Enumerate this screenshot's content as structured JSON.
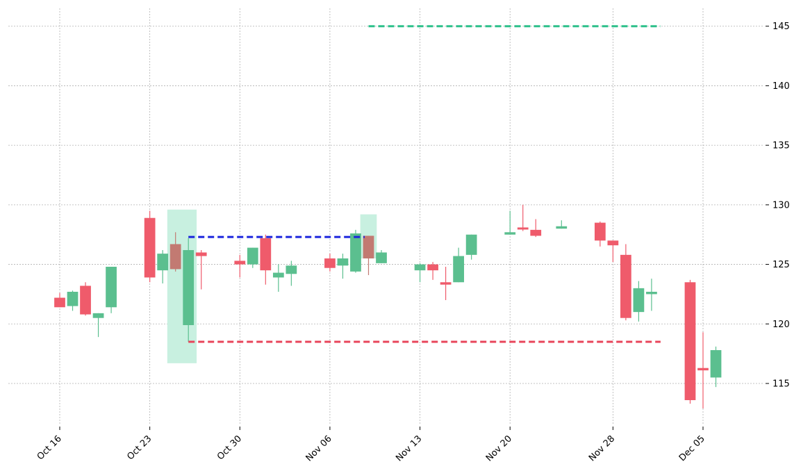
{
  "chart_data": {
    "type": "candlestick",
    "title": "",
    "xlabel": "",
    "ylabel": "",
    "ylim": [
      111.5,
      146.5
    ],
    "y_ticks": [
      115,
      120,
      125,
      130,
      135,
      140,
      145
    ],
    "y_axis_side": "right",
    "grid": true,
    "x_ticks": [
      {
        "date": "2023-10-16",
        "label": "Oct 16"
      },
      {
        "date": "2023-10-23",
        "label": "Oct 23"
      },
      {
        "date": "2023-10-30",
        "label": "Oct 30"
      },
      {
        "date": "2023-11-06",
        "label": "Nov 06"
      },
      {
        "date": "2023-11-13",
        "label": "Nov 13"
      },
      {
        "date": "2023-11-20",
        "label": "Nov 20"
      },
      {
        "date": "2023-11-28",
        "label": "Nov 28"
      },
      {
        "date": "2023-12-05",
        "label": "Dec 05"
      }
    ],
    "colors": {
      "up": "#5bbf8f",
      "down": "#ef5b6b",
      "highlight_fill": "#c8f0e0",
      "highlight_candle": "#c27a72",
      "blue_line": "#1a24dd",
      "green_line": "#2dc08a",
      "red_line": "#e8445a"
    },
    "candles": [
      {
        "date": "2023-10-16",
        "open": 122.2,
        "high": 122.6,
        "low": 121.4,
        "close": 121.4
      },
      {
        "date": "2023-10-17",
        "open": 121.5,
        "high": 122.8,
        "low": 121.1,
        "close": 122.7
      },
      {
        "date": "2023-10-18",
        "open": 123.2,
        "high": 123.5,
        "low": 120.7,
        "close": 120.8
      },
      {
        "date": "2023-10-19",
        "open": 120.5,
        "high": 120.9,
        "low": 118.9,
        "close": 120.9
      },
      {
        "date": "2023-10-20",
        "open": 121.4,
        "high": 124.8,
        "low": 120.9,
        "close": 124.8
      },
      {
        "date": "2023-10-23",
        "open": 128.9,
        "high": 129.5,
        "low": 123.5,
        "close": 123.9
      },
      {
        "date": "2023-10-24",
        "open": 124.5,
        "high": 126.2,
        "low": 123.4,
        "close": 125.9
      },
      {
        "date": "2023-10-25",
        "open": 126.7,
        "high": 127.7,
        "low": 124.4,
        "close": 124.6,
        "highlight": true
      },
      {
        "date": "2023-10-26",
        "open": 119.9,
        "high": 127.2,
        "low": 118.5,
        "close": 126.2
      },
      {
        "date": "2023-10-27",
        "open": 126.0,
        "high": 126.2,
        "low": 122.9,
        "close": 125.7
      },
      {
        "date": "2023-10-30",
        "open": 125.3,
        "high": 125.8,
        "low": 123.9,
        "close": 125.0
      },
      {
        "date": "2023-10-31",
        "open": 125.0,
        "high": 126.4,
        "low": 124.7,
        "close": 126.4
      },
      {
        "date": "2023-11-01",
        "open": 127.2,
        "high": 127.5,
        "low": 123.3,
        "close": 124.5
      },
      {
        "date": "2023-11-02",
        "open": 123.9,
        "high": 125.0,
        "low": 122.7,
        "close": 124.3
      },
      {
        "date": "2023-11-03",
        "open": 124.2,
        "high": 125.3,
        "low": 123.2,
        "close": 124.9
      },
      {
        "date": "2023-11-06",
        "open": 125.5,
        "high": 125.9,
        "low": 124.4,
        "close": 124.7
      },
      {
        "date": "2023-11-07",
        "open": 124.9,
        "high": 125.9,
        "low": 123.8,
        "close": 125.5
      },
      {
        "date": "2023-11-08",
        "open": 124.4,
        "high": 127.9,
        "low": 124.3,
        "close": 127.6
      },
      {
        "date": "2023-11-09",
        "open": 127.4,
        "high": 127.4,
        "low": 124.1,
        "close": 125.5,
        "highlight": true
      },
      {
        "date": "2023-11-10",
        "open": 125.1,
        "high": 126.2,
        "low": 125.1,
        "close": 126.0
      },
      {
        "date": "2023-11-13",
        "open": 124.5,
        "high": 125.1,
        "low": 123.5,
        "close": 125.0
      },
      {
        "date": "2023-11-14",
        "open": 125.0,
        "high": 125.2,
        "low": 123.7,
        "close": 124.5
      },
      {
        "date": "2023-11-15",
        "open": 123.5,
        "high": 124.8,
        "low": 122.0,
        "close": 123.3
      },
      {
        "date": "2023-11-16",
        "open": 123.5,
        "high": 126.4,
        "low": 123.5,
        "close": 125.7
      },
      {
        "date": "2023-11-17",
        "open": 125.8,
        "high": 127.5,
        "low": 125.4,
        "close": 127.5
      },
      {
        "date": "2023-11-20",
        "open": 127.5,
        "high": 129.5,
        "low": 127.5,
        "close": 127.7
      },
      {
        "date": "2023-11-21",
        "open": 128.1,
        "high": 130.0,
        "low": 127.8,
        "close": 128.0
      },
      {
        "date": "2023-11-22",
        "open": 127.9,
        "high": 128.8,
        "low": 127.3,
        "close": 127.4
      },
      {
        "date": "2023-11-24",
        "open": 128.0,
        "high": 128.7,
        "low": 128.0,
        "close": 128.2
      },
      {
        "date": "2023-11-27",
        "open": 128.5,
        "high": 128.6,
        "low": 126.5,
        "close": 127.0
      },
      {
        "date": "2023-11-28",
        "open": 127.0,
        "high": 127.0,
        "low": 125.2,
        "close": 126.6
      },
      {
        "date": "2023-11-29",
        "open": 125.8,
        "high": 126.7,
        "low": 120.3,
        "close": 120.5
      },
      {
        "date": "2023-11-30",
        "open": 121.0,
        "high": 123.6,
        "low": 120.2,
        "close": 123.0
      },
      {
        "date": "2023-12-01",
        "open": 122.5,
        "high": 123.8,
        "low": 121.1,
        "close": 122.7
      },
      {
        "date": "2023-12-04",
        "open": 123.5,
        "high": 123.7,
        "low": 113.3,
        "close": 113.6
      },
      {
        "date": "2023-12-05",
        "open": 116.3,
        "high": 119.3,
        "low": 112.9,
        "close": 116.1
      },
      {
        "date": "2023-12-06",
        "open": 115.5,
        "high": 118.1,
        "low": 114.7,
        "close": 117.8
      }
    ],
    "highlight_regions": [
      {
        "from": "2023-10-25",
        "to": "2023-10-26",
        "y0": 116.7,
        "y1": 129.6
      },
      {
        "from": "2023-11-09",
        "to": "2023-11-09",
        "y0": 125.5,
        "y1": 129.2
      }
    ],
    "lines": [
      {
        "kind": "blue",
        "from": "2023-10-26",
        "to": "2023-11-08",
        "y": 127.3
      },
      {
        "kind": "green",
        "from": "2023-11-09",
        "to": "2023-12-01",
        "y": 145.0
      },
      {
        "kind": "red",
        "from": "2023-10-26",
        "to": "2023-12-01",
        "y": 118.5
      }
    ]
  }
}
